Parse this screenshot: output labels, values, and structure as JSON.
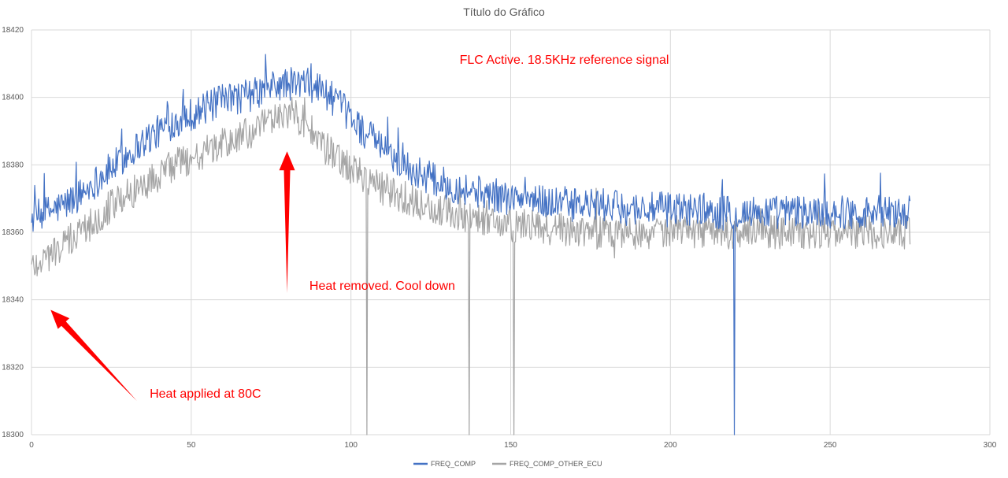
{
  "chart_data": {
    "type": "line",
    "title": "Título do Gráfico",
    "xlabel": "",
    "ylabel": "",
    "xlim": [
      0,
      300
    ],
    "ylim": [
      18300,
      18420
    ],
    "xticks": [
      0,
      50,
      100,
      150,
      200,
      250,
      300
    ],
    "yticks": [
      18300,
      18320,
      18340,
      18360,
      18380,
      18400,
      18420
    ],
    "grid": true,
    "legend_position": "bottom",
    "series": [
      {
        "name": "FREQ_COMP",
        "color": "#4472C4",
        "x": [
          0,
          5,
          10,
          15,
          20,
          25,
          30,
          35,
          40,
          45,
          50,
          55,
          60,
          65,
          70,
          75,
          80,
          85,
          90,
          95,
          100,
          105,
          110,
          115,
          120,
          125,
          130,
          135,
          140,
          145,
          150,
          155,
          160,
          165,
          170,
          175,
          180,
          185,
          190,
          195,
          200,
          205,
          210,
          215,
          220,
          225,
          230,
          235,
          240,
          245,
          250,
          255,
          260,
          265,
          270,
          275
        ],
        "values": [
          18364,
          18366,
          18368,
          18371,
          18375,
          18379,
          18383,
          18387,
          18390,
          18393,
          18395,
          18397,
          18399,
          18400,
          18401,
          18403,
          18404,
          18404,
          18403,
          18399,
          18394,
          18389,
          18385,
          18381,
          18378,
          18376,
          18374,
          18373,
          18372,
          18371,
          18370,
          18370,
          18369,
          18369,
          18368,
          18368,
          18368,
          18367,
          18367,
          18367,
          18367,
          18367,
          18367,
          18366,
          18366,
          18366,
          18366,
          18366,
          18366,
          18366,
          18366,
          18366,
          18366,
          18366,
          18366,
          18366
        ],
        "noise_amplitude": 5,
        "dropouts_x": [
          220
        ]
      },
      {
        "name": "FREQ_COMP_OTHER_ECU",
        "color": "#A5A5A5",
        "x": [
          0,
          5,
          10,
          15,
          20,
          25,
          30,
          35,
          40,
          45,
          50,
          55,
          60,
          65,
          70,
          75,
          80,
          85,
          90,
          95,
          100,
          105,
          110,
          115,
          120,
          125,
          130,
          135,
          140,
          145,
          150,
          155,
          160,
          165,
          170,
          175,
          180,
          185,
          190,
          195,
          200,
          205,
          210,
          215,
          220,
          225,
          230,
          235,
          240,
          245,
          250,
          255,
          260,
          265,
          270,
          275
        ],
        "values": [
          18350,
          18353,
          18356,
          18360,
          18364,
          18368,
          18371,
          18374,
          18377,
          18380,
          18382,
          18384,
          18386,
          18388,
          18390,
          18393,
          18396,
          18393,
          18387,
          18382,
          18379,
          18376,
          18373,
          18371,
          18369,
          18367,
          18366,
          18365,
          18364,
          18363,
          18362,
          18362,
          18361,
          18361,
          18361,
          18360,
          18360,
          18360,
          18360,
          18360,
          18360,
          18360,
          18360,
          18360,
          18360,
          18360,
          18360,
          18360,
          18360,
          18360,
          18360,
          18360,
          18360,
          18360,
          18360,
          18360
        ],
        "noise_amplitude": 5,
        "dropouts_x": [
          105,
          137,
          151
        ]
      }
    ],
    "annotations": [
      {
        "text": "FLC Active. 18.5KHz reference signal",
        "x": 134,
        "y": 18410
      },
      {
        "text": "Heat removed. Cool down",
        "x": 87,
        "y": 18343
      },
      {
        "text": "Heat applied at 80C",
        "x": 37,
        "y": 18311
      }
    ],
    "arrows": [
      {
        "from": [
          80,
          18342
        ],
        "to": [
          80,
          18384
        ]
      },
      {
        "from": [
          33,
          18310
        ],
        "to": [
          6,
          18337
        ]
      }
    ]
  }
}
